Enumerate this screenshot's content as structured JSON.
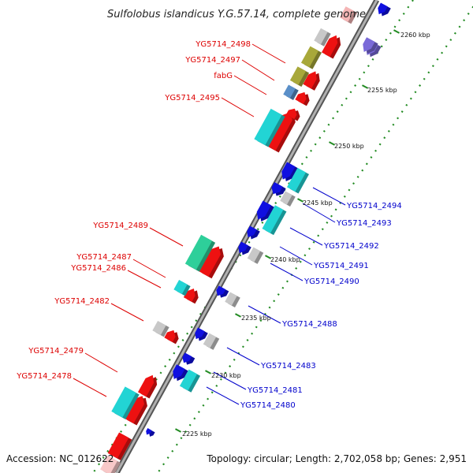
{
  "title": "Sulfolobus islandicus Y.G.57.14, complete genome",
  "footer": {
    "accession": "Accession: NC_012622",
    "stats": "Topology: circular; Length: 2,702,058 bp; Genes: 2,951"
  },
  "ticks": [
    "2260 kbp",
    "2255 kbp",
    "2250 kbp",
    "2245 kbp",
    "2240 kbp",
    "2235 kbp",
    "2230 kbp",
    "2225 kbp"
  ],
  "labels_left": [
    "YG5714_2498",
    "YG5714_2497",
    "fabG",
    "YG5714_2495",
    "YG5714_2489",
    "YG5714_2487",
    "YG5714_2486",
    "YG5714_2482",
    "YG5714_2479",
    "YG5714_2478"
  ],
  "labels_right": [
    "YG5714_2494",
    "YG5714_2493",
    "YG5714_2492",
    "YG5714_2491",
    "YG5714_2490",
    "YG5714_2488",
    "YG5714_2483",
    "YG5714_2481",
    "YG5714_2480"
  ],
  "colors": {
    "forward_gene": "#ee1111",
    "reverse_gene": "#1010e0",
    "cyan_feature": "#22d4d4",
    "teal_feature": "#2ecf9a",
    "olive_feature": "#a8a83a",
    "grey_feature": "#c8c8c8",
    "steel_feature": "#5a8fc8",
    "violet_feature": "#7a6ad8",
    "backbone": "#808080",
    "tick_dots": "#228b22",
    "label_red": "#dd0000",
    "label_blue": "#0000cc"
  }
}
